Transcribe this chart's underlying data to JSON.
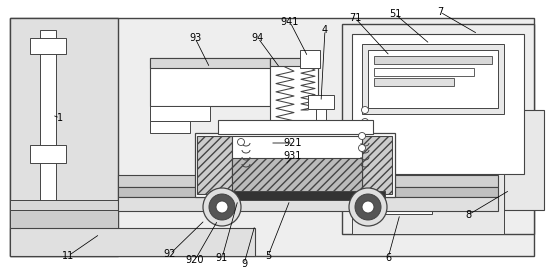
{
  "lc": "#444444",
  "lc2": "#666666",
  "bg": "#f2f2f2",
  "white": "#ffffff",
  "lgray": "#e8e8e8",
  "mgray": "#cccccc",
  "dgray": "#999999",
  "blk": "#222222"
}
